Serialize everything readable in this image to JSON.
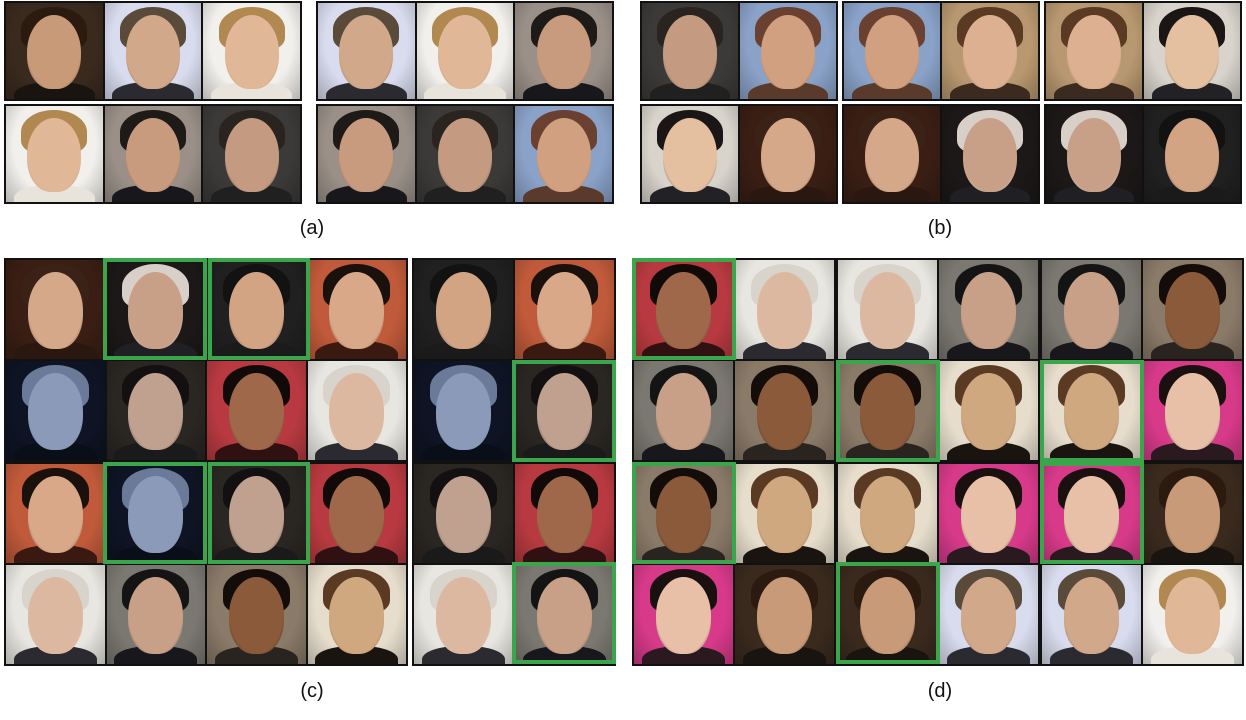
{
  "captions": {
    "a": "(a)",
    "b": "(b)",
    "c": "(c)",
    "d": "(d)"
  },
  "colors": {
    "highlight": "#3aa54a",
    "border": "#111111"
  }
}
